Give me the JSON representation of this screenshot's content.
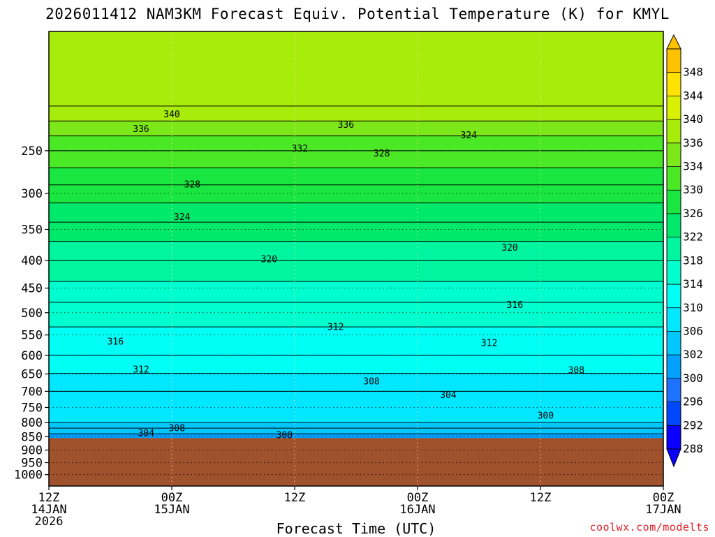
{
  "title": "2026011412 NAM3KM Forecast Equiv. Potential Temperature (K) for KMYL",
  "credit": "coolwx.com/modelts",
  "chart_data": {
    "type": "heatmap",
    "title": "2026011412 NAM3KM Forecast Equiv. Potential Temperature (K) for KMYL",
    "xlabel": "Forecast Time (UTC)",
    "ylabel": "",
    "xlim_hours": [
      0,
      60
    ],
    "ylim_hPa": [
      1050,
      150
    ],
    "y_scale": "log-pressure",
    "grid": true,
    "x_ticks": [
      {
        "hours": 0,
        "lines": [
          "12Z",
          "14JAN",
          "2026"
        ]
      },
      {
        "hours": 12,
        "lines": [
          "00Z",
          "15JAN"
        ]
      },
      {
        "hours": 24,
        "lines": [
          "12Z"
        ]
      },
      {
        "hours": 36,
        "lines": [
          "00Z",
          "16JAN"
        ]
      },
      {
        "hours": 48,
        "lines": [
          "12Z"
        ]
      },
      {
        "hours": 60,
        "lines": [
          "00Z",
          "17JAN"
        ]
      }
    ],
    "y_ticks": [
      250,
      300,
      350,
      400,
      450,
      500,
      550,
      600,
      650,
      700,
      750,
      800,
      850,
      900,
      950,
      1000
    ],
    "terrain_surface_hPa": 855,
    "terrain_color": "#a0522d",
    "colorbar": {
      "levels": [
        288,
        292,
        296,
        300,
        302,
        306,
        310,
        314,
        318,
        322,
        326,
        330,
        334,
        336,
        340,
        344,
        348
      ],
      "colors": [
        "#0a00ff",
        "#0047ff",
        "#1d72ff",
        "#00a0ff",
        "#00c8ff",
        "#00e7ff",
        "#00fff5",
        "#00ffcf",
        "#00f5a0",
        "#00e96b",
        "#19e640",
        "#4be826",
        "#7ce81a",
        "#a8ec0c",
        "#d9f000",
        "#ffe300",
        "#ffc200"
      ]
    },
    "theta_e_profile": [
      {
        "p": 860,
        "theta_e": 300
      },
      {
        "p": 800,
        "theta_e": 306
      },
      {
        "p": 700,
        "theta_e": 308
      },
      {
        "p": 600,
        "theta_e": 312
      },
      {
        "p": 500,
        "theta_e": 315
      },
      {
        "p": 400,
        "theta_e": 320
      },
      {
        "p": 300,
        "theta_e": 327
      },
      {
        "p": 250,
        "theta_e": 332
      },
      {
        "p": 200,
        "theta_e": 339
      }
    ],
    "contour_labels": [
      {
        "text": "340",
        "hours": 12,
        "p": 214
      },
      {
        "text": "336",
        "hours": 9,
        "p": 228
      },
      {
        "text": "336",
        "hours": 29,
        "p": 224
      },
      {
        "text": "332",
        "hours": 24.5,
        "p": 248
      },
      {
        "text": "328",
        "hours": 32.5,
        "p": 253
      },
      {
        "text": "324",
        "hours": 41,
        "p": 234
      },
      {
        "text": "328",
        "hours": 14,
        "p": 289
      },
      {
        "text": "324",
        "hours": 13,
        "p": 332
      },
      {
        "text": "320",
        "hours": 21.5,
        "p": 398
      },
      {
        "text": "320",
        "hours": 45,
        "p": 379
      },
      {
        "text": "316",
        "hours": 45.5,
        "p": 484
      },
      {
        "text": "312",
        "hours": 28,
        "p": 532
      },
      {
        "text": "316",
        "hours": 6.5,
        "p": 566
      },
      {
        "text": "312",
        "hours": 43,
        "p": 570
      },
      {
        "text": "312",
        "hours": 9,
        "p": 638
      },
      {
        "text": "308",
        "hours": 31.5,
        "p": 672
      },
      {
        "text": "308",
        "hours": 51.5,
        "p": 640
      },
      {
        "text": "304",
        "hours": 39,
        "p": 712
      },
      {
        "text": "300",
        "hours": 48.5,
        "p": 778
      },
      {
        "text": "308",
        "hours": 12.5,
        "p": 820
      },
      {
        "text": "304",
        "hours": 9.5,
        "p": 838
      },
      {
        "text": "300",
        "hours": 23,
        "p": 845
      }
    ]
  }
}
